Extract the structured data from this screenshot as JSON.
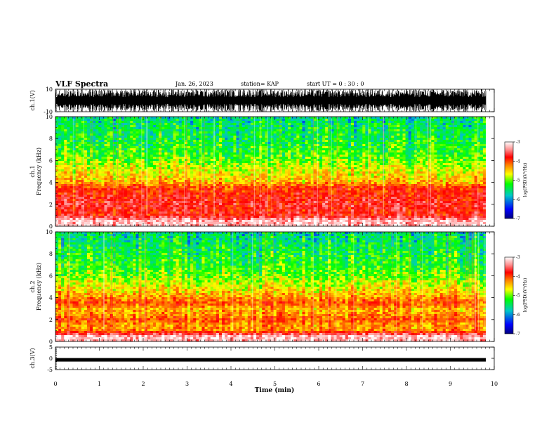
{
  "header": {
    "title": "VLF Spectra",
    "date": "Jan. 26, 2023",
    "station": "station= KAP",
    "start_time": "start UT =  0 : 30 : 0"
  },
  "colorbar": {
    "label": "log(PSD)(V²/Hz)",
    "ticks": [
      "-3",
      "-4",
      "-5",
      "-6",
      "-7"
    ],
    "colors": [
      "#000080",
      "#0000ff",
      "#00c8c8",
      "#00ff00",
      "#ffff00",
      "#ff8000",
      "#ff0000",
      "#ff9090",
      "#ffffff"
    ]
  },
  "chart_data": [
    {
      "type": "line",
      "name": "ch1-waveform",
      "ylabel": "ch.1(V)",
      "ylim": [
        -10,
        10
      ],
      "yticks": [
        "10",
        "-10"
      ],
      "description_values": {
        "amplitude_min": -10,
        "amplitude_max": 10
      }
    },
    {
      "type": "heatmap",
      "name": "ch1-spectrogram",
      "ylabel": "ch.1 Frequency (kHz)",
      "ylim": [
        0,
        10
      ],
      "yticks": [
        "0",
        "2",
        "4",
        "6",
        "8",
        "10"
      ],
      "xlim": [
        0,
        10
      ],
      "value_range": [
        -7,
        -3
      ],
      "profile": {
        "freq_khz": [
          0.5,
          1.0,
          1.5,
          2.0,
          2.5,
          3.0,
          3.5,
          4.0,
          5.0,
          6.0,
          7.0,
          8.0,
          9.0,
          10.0
        ],
        "log_psd": [
          -3.3,
          -4.0,
          -4.0,
          -3.9,
          -4.0,
          -4.1,
          -4.2,
          -4.7,
          -5.0,
          -5.3,
          -5.5,
          -5.6,
          -5.7,
          -5.8
        ]
      }
    },
    {
      "type": "heatmap",
      "name": "ch2-spectrogram",
      "ylabel": "ch.2 Frequency (kHz)",
      "ylim": [
        0,
        10
      ],
      "yticks": [
        "0",
        "2",
        "4",
        "6",
        "8",
        "10"
      ],
      "xlim": [
        0,
        10
      ],
      "value_range": [
        -7,
        -3
      ],
      "profile": {
        "freq_khz": [
          0.5,
          1.0,
          1.5,
          2.0,
          2.5,
          3.0,
          3.5,
          4.0,
          5.0,
          6.0,
          7.0,
          8.0,
          9.0,
          10.0
        ],
        "log_psd": [
          -3.3,
          -4.5,
          -4.6,
          -4.3,
          -4.6,
          -4.7,
          -4.3,
          -4.6,
          -5.0,
          -5.3,
          -5.5,
          -5.6,
          -5.7,
          -5.8
        ]
      }
    },
    {
      "type": "line",
      "name": "ch3-waveform",
      "ylabel": "ch.3(V)",
      "ylim": [
        -5,
        5
      ],
      "yticks": [
        "5",
        "0",
        "-5"
      ],
      "xlabel": "Time (min)",
      "xlim": [
        0,
        10
      ],
      "xticks": [
        "0",
        "1",
        "2",
        "3",
        "4",
        "5",
        "6",
        "7",
        "8",
        "9",
        "10"
      ],
      "description_values": {
        "level": -0.5
      }
    }
  ]
}
